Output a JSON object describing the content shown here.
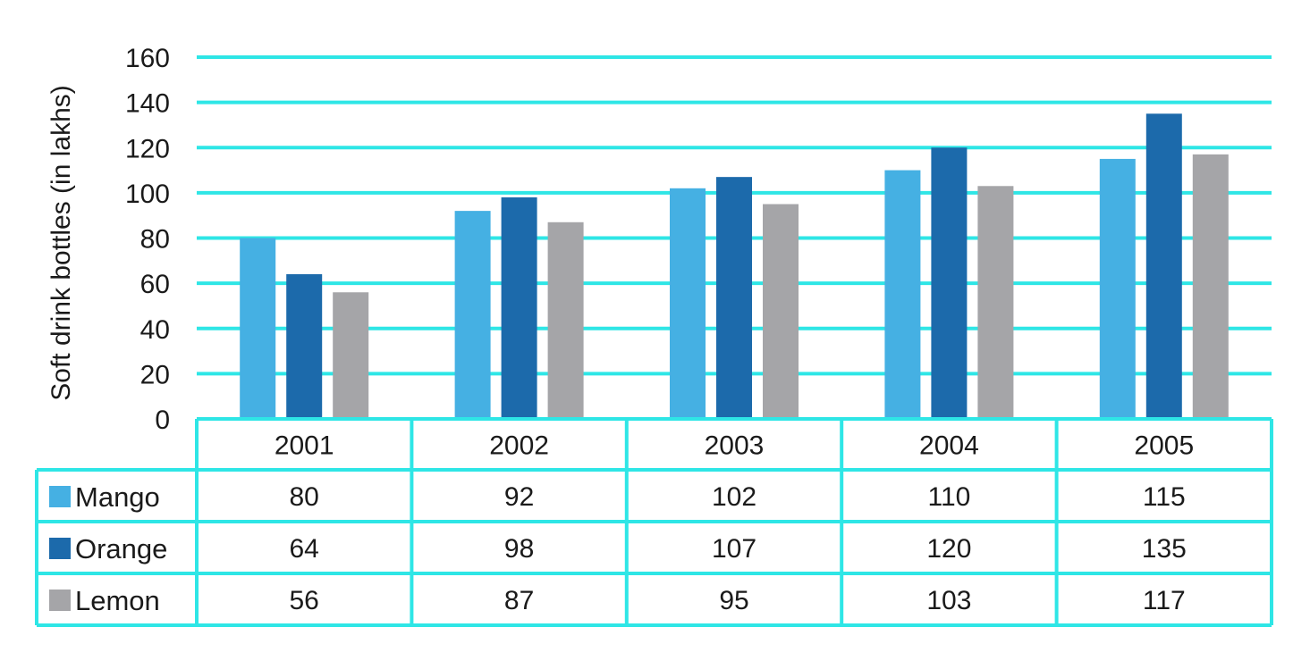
{
  "chart_data": {
    "type": "bar",
    "title": "",
    "xlabel": "",
    "ylabel": "Soft drink bottles (in lakhs)",
    "ylim": [
      0,
      160
    ],
    "yticks": [
      0,
      20,
      40,
      60,
      80,
      100,
      120,
      140,
      160
    ],
    "grid": true,
    "legend": "data-table-left",
    "categories": [
      "2001",
      "2002",
      "2003",
      "2004",
      "2005"
    ],
    "series": [
      {
        "name": "Mango",
        "color": "#45b0e3",
        "values": [
          80,
          92,
          102,
          110,
          115
        ]
      },
      {
        "name": "Orange",
        "color": "#1c6aab",
        "values": [
          64,
          98,
          107,
          120,
          135
        ]
      },
      {
        "name": "Lemon",
        "color": "#a5a5a8",
        "values": [
          56,
          87,
          95,
          103,
          117
        ]
      }
    ],
    "colors": {
      "grid": "#2ee6e6",
      "text": "#1a1a1a"
    }
  }
}
